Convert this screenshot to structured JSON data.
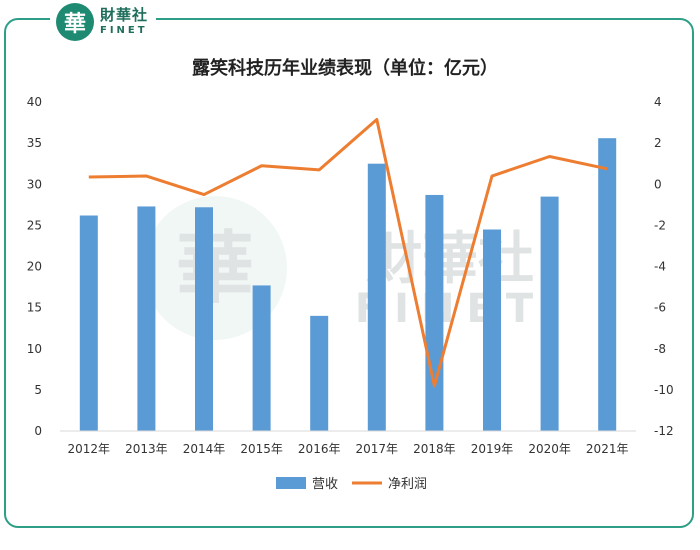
{
  "brand": {
    "logo_char": "華",
    "name_cn": "財華社",
    "name_en": "FINET"
  },
  "chart_data": {
    "type": "bar+line",
    "title": "露笑科技历年业绩表现（单位：亿元）",
    "categories": [
      "2012年",
      "2013年",
      "2014年",
      "2015年",
      "2016年",
      "2017年",
      "2018年",
      "2019年",
      "2020年",
      "2021年"
    ],
    "series": [
      {
        "name": "营收",
        "type": "bar",
        "axis": "left",
        "color": "#5b9bd5",
        "values": [
          26.2,
          27.3,
          27.2,
          17.7,
          14.0,
          32.5,
          28.7,
          24.5,
          28.5,
          35.6
        ]
      },
      {
        "name": "净利润",
        "type": "line",
        "axis": "right",
        "color": "#ed7d31",
        "values": [
          0.35,
          0.4,
          -0.5,
          0.9,
          0.7,
          3.15,
          -9.8,
          0.4,
          1.35,
          0.75
        ]
      }
    ],
    "y_left": {
      "min": 0,
      "max": 40,
      "ticks": [
        "0",
        "5",
        "10",
        "15",
        "20",
        "25",
        "30",
        "35",
        "40"
      ]
    },
    "y_right": {
      "min": -12,
      "max": 4,
      "ticks": [
        "-12",
        "-10",
        "-8",
        "-6",
        "-4",
        "-2",
        "0",
        "2",
        "4"
      ]
    },
    "grid": false,
    "legend": "bottom"
  },
  "watermark": {
    "cn": "財華社",
    "en": "FINET",
    "char": "華"
  }
}
